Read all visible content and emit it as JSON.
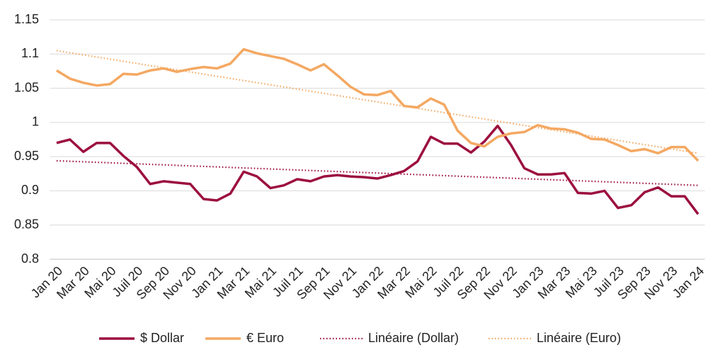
{
  "chart_data": {
    "type": "line",
    "categories": [
      "Jan 20",
      null,
      "Mar 20",
      null,
      "Mai 20",
      null,
      "Juil 20",
      null,
      "Sep 20",
      null,
      "Nov 20",
      null,
      "Jan 21",
      null,
      "Mar 21",
      null,
      "Mai 21",
      null,
      "Juil 21",
      null,
      "Sep 21",
      null,
      "Nov 21",
      null,
      "Jan 22",
      null,
      "Mar 22",
      null,
      "Mai 22",
      null,
      "Juil 22",
      null,
      "Sep 22",
      null,
      "Nov 22",
      null,
      "Jan 23",
      null,
      "Mar 23",
      null,
      "Mai 23",
      null,
      "Juil 23",
      null,
      "Sep 23",
      null,
      "Nov 23",
      null,
      "Jan 24"
    ],
    "series": [
      {
        "name": "$ Dollar",
        "color": "#9c0f3f",
        "values": [
          0.97,
          0.975,
          0.957,
          0.97,
          0.97,
          0.951,
          0.935,
          0.91,
          0.914,
          0.912,
          0.91,
          0.888,
          0.886,
          0.896,
          0.928,
          0.921,
          0.904,
          0.908,
          0.917,
          0.914,
          0.921,
          0.923,
          0.921,
          0.92,
          0.918,
          0.923,
          0.929,
          0.943,
          0.979,
          0.969,
          0.969,
          0.956,
          0.972,
          0.995,
          0.967,
          0.933,
          0.924,
          0.924,
          0.926,
          0.897,
          0.896,
          0.9,
          0.875,
          0.879,
          0.898,
          0.905,
          0.892,
          0.892,
          0.866
        ]
      },
      {
        "name": "€ Euro",
        "color": "#f4a862",
        "values": [
          1.076,
          1.064,
          1.058,
          1.054,
          1.056,
          1.071,
          1.07,
          1.076,
          1.079,
          1.074,
          1.078,
          1.081,
          1.079,
          1.086,
          1.107,
          1.101,
          1.097,
          1.093,
          1.085,
          1.076,
          1.085,
          1.069,
          1.052,
          1.041,
          1.04,
          1.046,
          1.024,
          1.022,
          1.035,
          1.026,
          0.988,
          0.97,
          0.965,
          0.979,
          0.984,
          0.986,
          0.996,
          0.991,
          0.99,
          0.985,
          0.976,
          0.975,
          0.967,
          0.958,
          0.961,
          0.955,
          0.964,
          0.964,
          0.944
        ]
      }
    ],
    "trendlines": [
      {
        "name": "Linéaire (Dollar)",
        "color": "#9c0f3f",
        "values": [
          0.944,
          0.908
        ]
      },
      {
        "name": "Linéaire (Euro)",
        "color": "#f4a862",
        "values": [
          1.105,
          0.955
        ]
      }
    ],
    "ylim": [
      0.8,
      1.15
    ],
    "yticks": [
      0.8,
      0.85,
      0.9,
      0.95,
      1,
      1.05,
      1.1,
      1.15
    ],
    "grid": true,
    "legend": "bottom"
  }
}
